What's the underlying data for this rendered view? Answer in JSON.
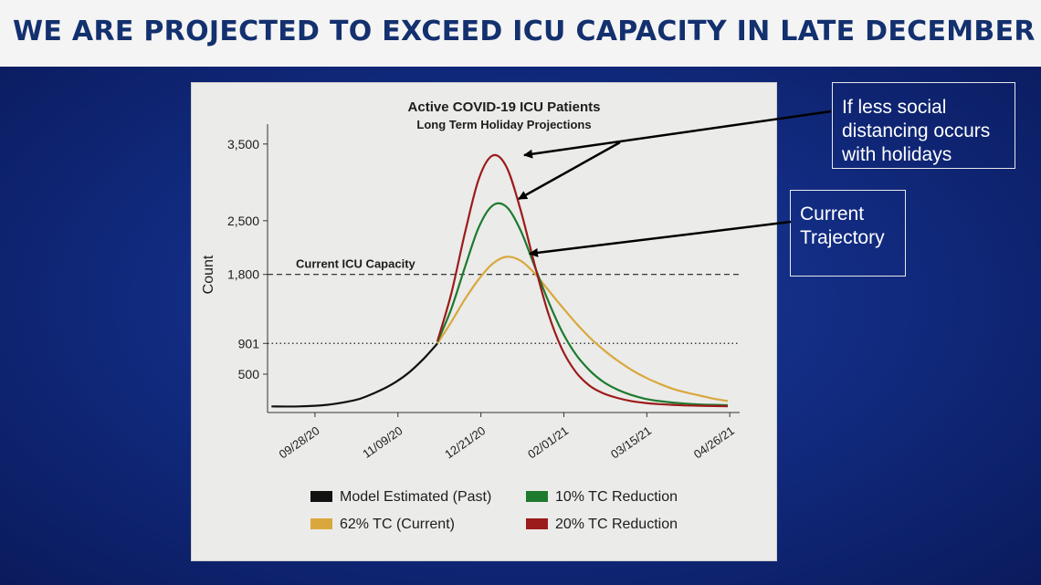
{
  "header": {
    "title": "WE ARE PROJECTED TO EXCEED ICU CAPACITY IN LATE DECEMBER"
  },
  "callouts": {
    "top": [
      "If less social",
      "distancing occurs",
      "with holidays"
    ],
    "bottom": [
      "Current",
      "Trajectory"
    ]
  },
  "colors": {
    "model": "#111111",
    "tc10": "#1e7a2e",
    "tc62": "#d9a83d",
    "tc20": "#9c1b1b",
    "title_blue": "#13306f",
    "background": "#0d1f66"
  },
  "chart_data": {
    "type": "line",
    "title": "Active COVID-19 ICU Patients",
    "subtitle": "Long Term Holiday Projections",
    "ylabel": "Count",
    "xlabel": "",
    "ylim": [
      0,
      3700
    ],
    "y_ticks": [
      500,
      901,
      1800,
      2500,
      3500
    ],
    "y_tick_labels": [
      "500",
      "901",
      "1,800",
      "2,500",
      "3,500"
    ],
    "x_ticks": [
      "09/28/20",
      "11/09/20",
      "12/21/20",
      "02/01/21",
      "03/15/21",
      "04/26/21"
    ],
    "x_range": [
      "2020-09-04",
      "2021-05-01"
    ],
    "reference_lines": [
      {
        "label": "Current ICU Capacity",
        "value": 1800,
        "style": "dashed"
      },
      {
        "label": "",
        "value": 901,
        "style": "dotted"
      }
    ],
    "legend_placement": "bottom",
    "series": [
      {
        "name": "Model Estimated (Past)",
        "color": "#111111",
        "x": [
          "2020-09-06",
          "2020-09-20",
          "2020-10-04",
          "2020-10-18",
          "2020-10-25",
          "2020-11-01",
          "2020-11-08",
          "2020-11-15",
          "2020-11-22",
          "2020-11-29"
        ],
        "y": [
          80,
          80,
          100,
          160,
          220,
          300,
          400,
          530,
          700,
          900
        ]
      },
      {
        "name": "62% TC (Current)",
        "color": "#d9a83d",
        "x": [
          "2020-11-29",
          "2020-12-06",
          "2020-12-13",
          "2020-12-20",
          "2020-12-27",
          "2021-01-03",
          "2021-01-10",
          "2021-01-17",
          "2021-01-24",
          "2021-01-31",
          "2021-02-07",
          "2021-02-14",
          "2021-02-21",
          "2021-02-28",
          "2021-03-07",
          "2021-03-14",
          "2021-03-21",
          "2021-03-28",
          "2021-04-04",
          "2021-04-11",
          "2021-04-18",
          "2021-04-25"
        ],
        "y": [
          900,
          1180,
          1480,
          1740,
          1940,
          2030,
          1980,
          1820,
          1600,
          1380,
          1170,
          980,
          820,
          680,
          560,
          460,
          380,
          310,
          260,
          220,
          180,
          150
        ]
      },
      {
        "name": "10% TC Reduction",
        "color": "#1e7a2e",
        "x": [
          "2020-11-29",
          "2020-12-06",
          "2020-12-13",
          "2020-12-20",
          "2020-12-27",
          "2021-01-03",
          "2021-01-10",
          "2021-01-17",
          "2021-01-24",
          "2021-01-31",
          "2021-02-07",
          "2021-02-14",
          "2021-02-21",
          "2021-02-28",
          "2021-03-07",
          "2021-03-14",
          "2021-03-21",
          "2021-03-28",
          "2021-04-04",
          "2021-04-11",
          "2021-04-18",
          "2021-04-25"
        ],
        "y": [
          920,
          1350,
          1900,
          2420,
          2700,
          2680,
          2380,
          1920,
          1460,
          1060,
          760,
          550,
          400,
          300,
          230,
          180,
          150,
          130,
          115,
          105,
          100,
          95
        ]
      },
      {
        "name": "20% TC Reduction",
        "color": "#9c1b1b",
        "x": [
          "2020-11-29",
          "2020-12-06",
          "2020-12-13",
          "2020-12-20",
          "2020-12-27",
          "2021-01-03",
          "2021-01-10",
          "2021-01-17",
          "2021-01-24",
          "2021-01-31",
          "2021-02-07",
          "2021-02-14",
          "2021-02-21",
          "2021-02-28",
          "2021-03-07",
          "2021-03-14",
          "2021-03-21",
          "2021-03-28",
          "2021-04-04",
          "2021-04-11",
          "2021-04-18",
          "2021-04-25"
        ],
        "y": [
          930,
          1550,
          2350,
          3050,
          3350,
          3200,
          2650,
          1950,
          1300,
          830,
          530,
          350,
          250,
          190,
          150,
          125,
          110,
          100,
          92,
          88,
          85,
          82
        ]
      }
    ]
  }
}
